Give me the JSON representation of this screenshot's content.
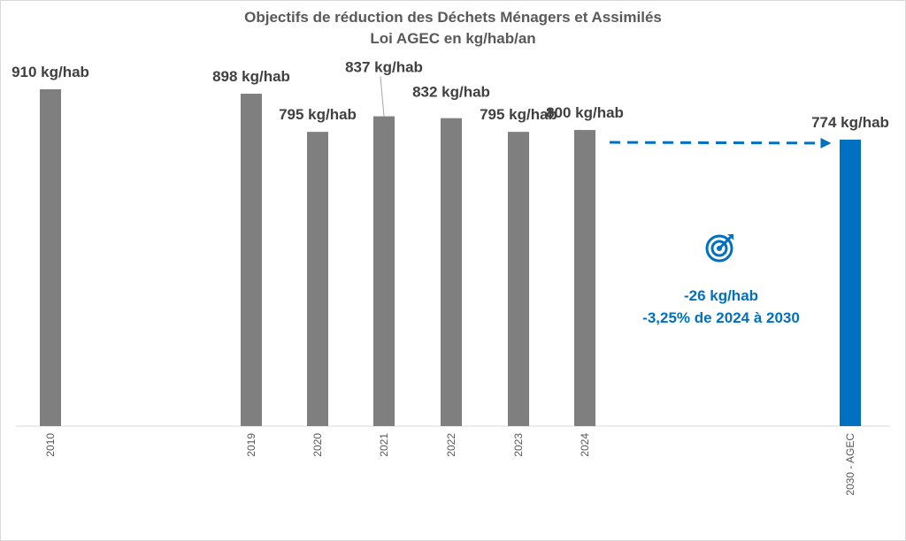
{
  "chart_data": {
    "type": "bar",
    "title": "Objectifs de réduction des Déchets Ménagers et Assimilés",
    "subtitle": "Loi AGEC en kg/hab/an",
    "categories": [
      "2010",
      "2019",
      "2020",
      "2021",
      "2022",
      "2023",
      "2024",
      "2030 - AGEC"
    ],
    "values": [
      910,
      898,
      795,
      837,
      832,
      795,
      800,
      774
    ],
    "data_labels": [
      "910 kg/hab",
      "898 kg/hab",
      "795 kg/hab",
      "837 kg/hab",
      "832 kg/hab",
      "795 kg/hab",
      "800 kg/hab",
      "774 kg/hab"
    ],
    "ylim": [
      0,
      910
    ],
    "grid": false,
    "bar_colors": [
      "#7f7f7f",
      "#7f7f7f",
      "#7f7f7f",
      "#7f7f7f",
      "#7f7f7f",
      "#7f7f7f",
      "#7f7f7f",
      "#0070c0"
    ],
    "trend_arrow": {
      "from": "2024",
      "to": "2030 - AGEC",
      "color": "#0070c0",
      "style": "dashed"
    },
    "annotation": {
      "icon": "target-icon",
      "lines": [
        "-26 kg/hab",
        "-3,25% de 2024 à 2030"
      ],
      "color": "#0070c0"
    }
  }
}
